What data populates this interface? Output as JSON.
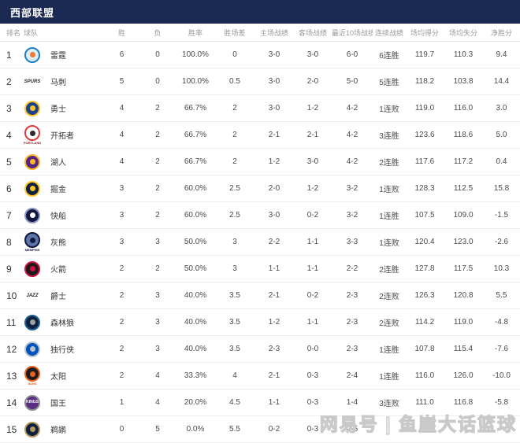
{
  "title": "西部联盟",
  "colors": {
    "header_bg": "#1b2a52",
    "header_text": "#ffffff",
    "column_header_text": "#9a9a9a",
    "row_border": "#ededed",
    "body_text": "#4a4a4a"
  },
  "watermark": "网易号 | 鱼崖大话篮球",
  "table": {
    "columns": [
      "排名",
      "球队",
      "胜",
      "负",
      "胜率",
      "胜场差",
      "主场战绩",
      "客场战绩",
      "最近10场战绩",
      "连续战绩",
      "场均得分",
      "场均失分",
      "净胜分"
    ],
    "rows": [
      {
        "rank": "1",
        "team": "雷霆",
        "logo": {
          "shape": "circle",
          "bg": "#ddeef9",
          "border": "#1d7fc2",
          "accent": "#ef7b32"
        },
        "win": "6",
        "loss": "0",
        "pct": "100.0%",
        "gb": "0",
        "home": "3-0",
        "away": "3-0",
        "last10": "6-0",
        "streak": "6连胜",
        "ppg": "119.7",
        "opp_ppg": "110.3",
        "diff": "9.4"
      },
      {
        "rank": "2",
        "team": "马刺",
        "logo": {
          "shape": "text",
          "label": "SPURS",
          "color": "#2b2b2b"
        },
        "win": "5",
        "loss": "0",
        "pct": "100.0%",
        "gb": "0.5",
        "home": "3-0",
        "away": "2-0",
        "last10": "5-0",
        "streak": "5连胜",
        "ppg": "118.2",
        "opp_ppg": "103.8",
        "diff": "14.4"
      },
      {
        "rank": "3",
        "team": "勇士",
        "logo": {
          "shape": "circle",
          "bg": "#1d428a",
          "border": "#ffc72c",
          "accent": "#ffc72c"
        },
        "win": "4",
        "loss": "2",
        "pct": "66.7%",
        "gb": "2",
        "home": "3-0",
        "away": "1-2",
        "last10": "4-2",
        "streak": "1连败",
        "ppg": "119.0",
        "opp_ppg": "116.0",
        "diff": "3.0"
      },
      {
        "rank": "4",
        "team": "开拓者",
        "logo": {
          "shape": "circle",
          "bg": "#ffffff",
          "border": "#e03a3e",
          "accent": "#2b2b2b",
          "caption": "PORTLAND",
          "captionColor": "#8b1d1d"
        },
        "win": "4",
        "loss": "2",
        "pct": "66.7%",
        "gb": "2",
        "home": "2-1",
        "away": "2-1",
        "last10": "4-2",
        "streak": "3连胜",
        "ppg": "123.6",
        "opp_ppg": "118.6",
        "diff": "5.0"
      },
      {
        "rank": "5",
        "team": "湖人",
        "logo": {
          "shape": "circle",
          "bg": "#552583",
          "border": "#fdb927",
          "accent": "#fdb927"
        },
        "win": "4",
        "loss": "2",
        "pct": "66.7%",
        "gb": "2",
        "home": "1-2",
        "away": "3-0",
        "last10": "4-2",
        "streak": "2连胜",
        "ppg": "117.6",
        "opp_ppg": "117.2",
        "diff": "0.4"
      },
      {
        "rank": "6",
        "team": "掘金",
        "logo": {
          "shape": "circle",
          "bg": "#0e2240",
          "border": "#fec524",
          "accent": "#fec524"
        },
        "win": "3",
        "loss": "2",
        "pct": "60.0%",
        "gb": "2.5",
        "home": "2-0",
        "away": "1-2",
        "last10": "3-2",
        "streak": "1连败",
        "ppg": "128.3",
        "opp_ppg": "112.5",
        "diff": "15.8"
      },
      {
        "rank": "7",
        "team": "快船",
        "logo": {
          "shape": "circle",
          "bg": "#12173f",
          "border": "#8d97c3",
          "accent": "#ffffff"
        },
        "win": "3",
        "loss": "2",
        "pct": "60.0%",
        "gb": "2.5",
        "home": "3-0",
        "away": "0-2",
        "last10": "3-2",
        "streak": "1连胜",
        "ppg": "107.5",
        "opp_ppg": "109.0",
        "diff": "-1.5"
      },
      {
        "rank": "8",
        "team": "灰熊",
        "logo": {
          "shape": "circle",
          "bg": "#5d76a9",
          "border": "#12173f",
          "accent": "#12173f",
          "caption": "MEMPHIS",
          "captionColor": "#12173f"
        },
        "win": "3",
        "loss": "3",
        "pct": "50.0%",
        "gb": "3",
        "home": "2-2",
        "away": "1-1",
        "last10": "3-3",
        "streak": "1连败",
        "ppg": "120.4",
        "opp_ppg": "123.0",
        "diff": "-2.6"
      },
      {
        "rank": "9",
        "team": "火箭",
        "logo": {
          "shape": "circle",
          "bg": "#1a1a1a",
          "border": "#ce1141",
          "accent": "#ce1141"
        },
        "win": "2",
        "loss": "2",
        "pct": "50.0%",
        "gb": "3",
        "home": "1-1",
        "away": "1-1",
        "last10": "2-2",
        "streak": "2连胜",
        "ppg": "127.8",
        "opp_ppg": "117.5",
        "diff": "10.3"
      },
      {
        "rank": "10",
        "team": "爵士",
        "logo": {
          "shape": "text",
          "label": "JAZZ",
          "color": "#1c1c1c"
        },
        "win": "2",
        "loss": "3",
        "pct": "40.0%",
        "gb": "3.5",
        "home": "2-1",
        "away": "0-2",
        "last10": "2-3",
        "streak": "2连败",
        "ppg": "126.3",
        "opp_ppg": "120.8",
        "diff": "5.5"
      },
      {
        "rank": "11",
        "team": "森林狼",
        "logo": {
          "shape": "circle",
          "bg": "#0c2340",
          "border": "#236192",
          "accent": "#9ea2a2"
        },
        "win": "2",
        "loss": "3",
        "pct": "40.0%",
        "gb": "3.5",
        "home": "1-2",
        "away": "1-1",
        "last10": "2-3",
        "streak": "2连败",
        "ppg": "114.2",
        "opp_ppg": "119.0",
        "diff": "-4.8"
      },
      {
        "rank": "12",
        "team": "独行侠",
        "logo": {
          "shape": "circle",
          "bg": "#0053bc",
          "border": "#b8c4ca",
          "accent": "#b8c4ca"
        },
        "win": "2",
        "loss": "3",
        "pct": "40.0%",
        "gb": "3.5",
        "home": "2-3",
        "away": "0-0",
        "last10": "2-3",
        "streak": "1连胜",
        "ppg": "107.8",
        "opp_ppg": "115.4",
        "diff": "-7.6"
      },
      {
        "rank": "13",
        "team": "太阳",
        "logo": {
          "shape": "circle",
          "bg": "#1b1b1b",
          "border": "#e56020",
          "accent": "#e56020",
          "caption": "SUNS",
          "captionColor": "#e56020"
        },
        "win": "2",
        "loss": "4",
        "pct": "33.3%",
        "gb": "4",
        "home": "2-1",
        "away": "0-3",
        "last10": "2-4",
        "streak": "1连胜",
        "ppg": "116.0",
        "opp_ppg": "126.0",
        "diff": "-10.0"
      },
      {
        "rank": "14",
        "team": "国王",
        "logo": {
          "shape": "circle",
          "bg": "#5a2d81",
          "border": "#8a8d8f",
          "accent": "#5a2d81",
          "label": "KINGS",
          "labelColor": "#ffffff"
        },
        "win": "1",
        "loss": "4",
        "pct": "20.0%",
        "gb": "4.5",
        "home": "1-1",
        "away": "0-3",
        "last10": "1-4",
        "streak": "3连败",
        "ppg": "111.0",
        "opp_ppg": "116.8",
        "diff": "-5.8"
      },
      {
        "rank": "15",
        "team": "鹈鹕",
        "logo": {
          "shape": "circle",
          "bg": "#0c2340",
          "border": "#b4975a",
          "accent": "#b4975a"
        },
        "win": "0",
        "loss": "5",
        "pct": "0.0%",
        "gb": "5.5",
        "home": "0-2",
        "away": "0-3",
        "last10": "0-5",
        "streak": "",
        "ppg": "",
        "opp_ppg": "",
        "diff": ""
      }
    ]
  }
}
